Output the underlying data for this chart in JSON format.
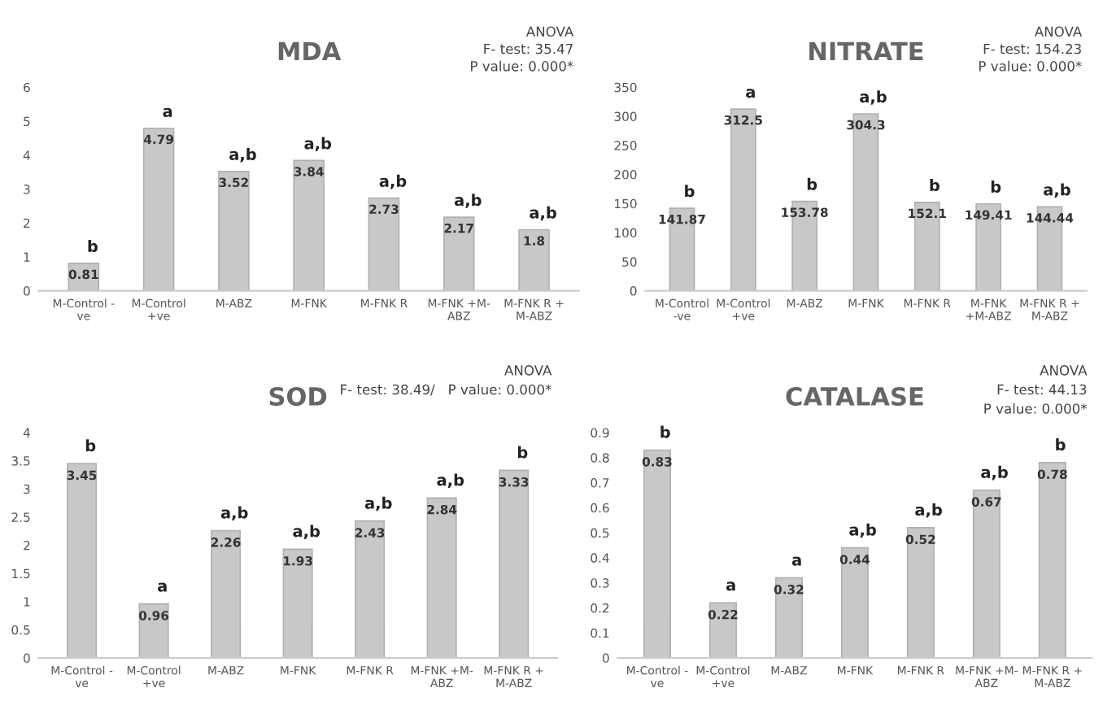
{
  "chart_data": [
    {
      "type": "bar",
      "title": "MDA",
      "categories": [
        "M-Control -\nve",
        "M-Control\n+ve",
        "M-ABZ",
        "M-FNK",
        "M-FNK R",
        "M-FNK +M-\nABZ",
        "M-FNK R +\nM-ABZ"
      ],
      "values": [
        0.81,
        4.79,
        3.52,
        3.84,
        2.73,
        2.17,
        1.8
      ],
      "color": "#c8c8c8",
      "ylim": [
        0,
        6
      ],
      "yticks": [
        0,
        1,
        2,
        3,
        4,
        5,
        6
      ],
      "data_labels": true,
      "grid": false,
      "annotations": [
        "ANOVA",
        "F- test: 35.47",
        "P value: 0.000*",
        {
          "text": "b",
          "x": "M-Control -\nve",
          "y": 0.81
        },
        {
          "text": "a",
          "x": "M-Control\n+ve",
          "y": 4.79
        },
        {
          "text": "a,b",
          "x": "M-ABZ",
          "y": 3.52
        },
        {
          "text": "a,b",
          "x": "M-FNK",
          "y": 3.84
        },
        {
          "text": "a,b",
          "x": "M-FNK R",
          "y": 2.73
        },
        {
          "text": "a,b",
          "x": "M-FNK +M-\nABZ",
          "y": 2.17
        },
        {
          "text": "a,b",
          "x": "M-FNK R +\nM-ABZ",
          "y": 1.8
        }
      ]
    },
    {
      "type": "bar",
      "title": "NITRATE",
      "categories": [
        "M-Control\n-ve",
        "M-Control\n+ve",
        "M-ABZ",
        "M-FNK",
        "M-FNK R",
        "M-FNK\n+M-ABZ",
        "M-FNK R +\nM-ABZ"
      ],
      "values": [
        141.87,
        312.5,
        153.78,
        304.3,
        152.1,
        149.41,
        144.44
      ],
      "color": "#c8c8c8",
      "ylim": [
        0,
        350
      ],
      "yticks": [
        0,
        50,
        100,
        150,
        200,
        250,
        300,
        350
      ],
      "data_labels": true,
      "grid": false,
      "annotations": [
        "ANOVA",
        "F- test: 154.23",
        "P value: 0.000*",
        {
          "text": "b",
          "x": "M-Control\n-ve",
          "y": 141.87
        },
        {
          "text": "a",
          "x": "M-Control\n+ve",
          "y": 312.5
        },
        {
          "text": "b",
          "x": "M-ABZ",
          "y": 153.78
        },
        {
          "text": "a,b",
          "x": "M-FNK",
          "y": 304.3
        },
        {
          "text": "b",
          "x": "M-FNK R",
          "y": 152.1
        },
        {
          "text": "b",
          "x": "M-FNK\n+M-ABZ",
          "y": 149.41
        },
        {
          "text": "a,b",
          "x": "M-FNK R +\nM-ABZ",
          "y": 144.44
        }
      ]
    },
    {
      "type": "bar",
      "title": "SOD",
      "categories": [
        "M-Control -\nve",
        "M-Control\n+ve",
        "M-ABZ",
        "M-FNK",
        "M-FNK R",
        "M-FNK +M-\nABZ",
        "M-FNK R +\nM-ABZ"
      ],
      "values": [
        3.45,
        0.96,
        2.26,
        1.93,
        2.43,
        2.84,
        3.33
      ],
      "color": "#c8c8c8",
      "ylim": [
        0,
        4
      ],
      "yticks": [
        0,
        0.5,
        1,
        1.5,
        2,
        2.5,
        3,
        3.5,
        4
      ],
      "data_labels": true,
      "grid": false,
      "annotations": [
        "ANOVA",
        "F- test: 38.49/   P value: 0.000*",
        {
          "text": "b",
          "x": "M-Control -\nve",
          "y": 3.45
        },
        {
          "text": "a",
          "x": "M-Control\n+ve",
          "y": 0.96
        },
        {
          "text": "a,b",
          "x": "M-ABZ",
          "y": 2.26
        },
        {
          "text": "a,b",
          "x": "M-FNK",
          "y": 1.93
        },
        {
          "text": "a,b",
          "x": "M-FNK R",
          "y": 2.43
        },
        {
          "text": "a,b",
          "x": "M-FNK +M-\nABZ",
          "y": 2.84
        },
        {
          "text": "b",
          "x": "M-FNK R +\nM-ABZ",
          "y": 3.33
        }
      ]
    },
    {
      "type": "bar",
      "title": "CATALASE",
      "categories": [
        "M-Control -\nve",
        "M-Control\n+ve",
        "M-ABZ",
        "M-FNK",
        "M-FNK R",
        "M-FNK +M-\nABZ",
        "M-FNK R +\nM-ABZ"
      ],
      "values": [
        0.83,
        0.22,
        0.32,
        0.44,
        0.52,
        0.67,
        0.78
      ],
      "color": "#c8c8c8",
      "ylim": [
        0,
        0.9
      ],
      "yticks": [
        0,
        0.1,
        0.2,
        0.3,
        0.4,
        0.5,
        0.6,
        0.7,
        0.8,
        0.9
      ],
      "data_labels": true,
      "grid": false,
      "annotations": [
        "ANOVA",
        "F- test: 44.13",
        "P value: 0.000*",
        {
          "text": "b",
          "x": "M-Control -\nve",
          "y": 0.83
        },
        {
          "text": "a",
          "x": "M-Control\n+ve",
          "y": 0.22
        },
        {
          "text": "a",
          "x": "M-ABZ",
          "y": 0.32
        },
        {
          "text": "a,b",
          "x": "M-FNK",
          "y": 0.44
        },
        {
          "text": "a,b",
          "x": "M-FNK R",
          "y": 0.52
        },
        {
          "text": "a,b",
          "x": "M-FNK +M-\nABZ",
          "y": 0.67
        },
        {
          "text": "b",
          "x": "M-FNK R +\nM-ABZ",
          "y": 0.78
        }
      ]
    }
  ]
}
